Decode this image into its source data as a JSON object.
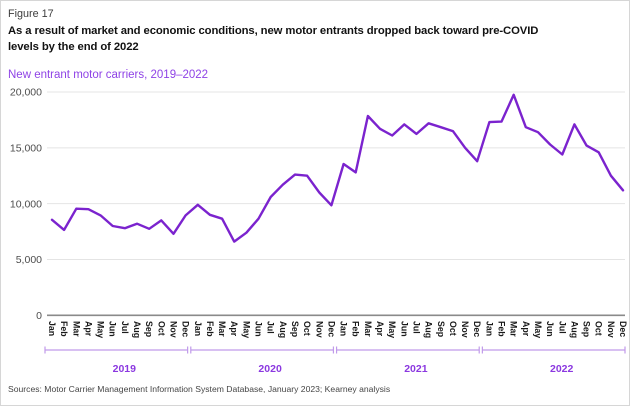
{
  "figure_label": "Figure 17",
  "title": "As a result of market and economic conditions, new motor entrants dropped back toward pre-COVID levels by the end of 2022",
  "subtitle": "New entrant motor carriers, 2019–2022",
  "source": "Sources: Motor Carrier Management Information System Database, January 2023; Kearney analysis",
  "colors": {
    "line": "#7b23ce",
    "subtitle": "#8f43e6",
    "year_label": "#8b38e0",
    "bracket": "#c09aea",
    "grid": "#e4e4e4",
    "axis": "#8a8a8a",
    "tick_text": "#4d4d4d",
    "month_text": "#1a1a1a"
  },
  "chart_data": {
    "type": "line",
    "title": "New entrant motor carriers, 2019–2022",
    "xlabel": "",
    "ylabel": "",
    "ylim": [
      0,
      20000
    ],
    "grid": true,
    "legend": false,
    "yticks": [
      0,
      5000,
      10000,
      15000,
      20000
    ],
    "ytick_labels": [
      "0",
      "5,000",
      "10,000",
      "15,000",
      "20,000"
    ],
    "month_labels": [
      "Jan",
      "Feb",
      "Mar",
      "Apr",
      "May",
      "Jun",
      "Jul",
      "Aug",
      "Sep",
      "Oct",
      "Nov",
      "Dec"
    ],
    "years": [
      "2019",
      "2020",
      "2021",
      "2022"
    ],
    "series": [
      {
        "name": "New entrant motor carriers",
        "values": [
          8550,
          7650,
          9550,
          9500,
          8950,
          8000,
          7800,
          8200,
          7750,
          8500,
          7300,
          8950,
          9900,
          9000,
          8650,
          6600,
          7400,
          8650,
          10600,
          11700,
          12600,
          12500,
          11000,
          9850,
          13550,
          12800,
          17850,
          16700,
          16100,
          17100,
          16250,
          17200,
          16850,
          16500,
          15000,
          13800,
          17300,
          17350,
          19750,
          16850,
          16400,
          15300,
          14400,
          17100,
          15200,
          14600,
          12500,
          11200
        ]
      }
    ]
  }
}
